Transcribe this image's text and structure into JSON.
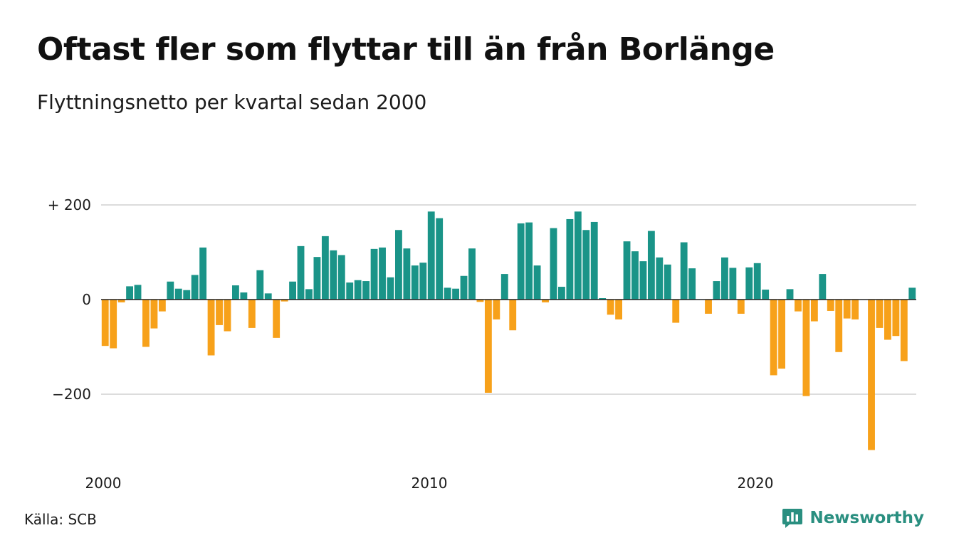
{
  "title": "Oftast fler som flyttar till än från Borlänge",
  "subtitle": "Flyttningsnetto per kvartal sedan 2000",
  "source": "Källa: SCB",
  "brand": {
    "name": "Newsworthy",
    "icon": "bar-chart-logo-icon"
  },
  "colors": {
    "positive": "#1a9488",
    "negative": "#f7a11a",
    "grid": "#dcdcdc",
    "zero_line": "#222222",
    "brand": "#2a8f80"
  },
  "chart_data": {
    "type": "bar",
    "title": "Oftast fler som flyttar till än från Borlänge",
    "subtitle": "Flyttningsnetto per kvartal sedan 2000",
    "xlabel": "",
    "ylabel": "",
    "x_start": "2000 Q1",
    "x_ticks": [
      {
        "label": "2000",
        "index": 0
      },
      {
        "label": "2010",
        "index": 40
      },
      {
        "label": "2020",
        "index": 80
      }
    ],
    "y_ticks": [
      {
        "label": "+ 200",
        "value": 200
      },
      {
        "label": "0",
        "value": 0
      },
      {
        "label": "−200",
        "value": -200
      }
    ],
    "ylim": [
      -330,
      210
    ],
    "grid": true,
    "values": [
      -98,
      -103,
      -6,
      28,
      31,
      -100,
      -61,
      -25,
      38,
      23,
      20,
      52,
      110,
      -118,
      -54,
      -67,
      30,
      15,
      -60,
      62,
      13,
      -81,
      -4,
      38,
      113,
      22,
      90,
      134,
      104,
      94,
      36,
      41,
      39,
      107,
      110,
      47,
      147,
      108,
      72,
      78,
      186,
      172,
      25,
      23,
      50,
      108,
      -5,
      -197,
      -42,
      54,
      -65,
      161,
      163,
      72,
      -6,
      151,
      27,
      170,
      186,
      147,
      164,
      3,
      -32,
      -42,
      123,
      102,
      81,
      145,
      89,
      74,
      -49,
      121,
      66,
      0,
      -30,
      39,
      89,
      67,
      -30,
      68,
      77,
      21,
      -160,
      -146,
      22,
      -25,
      -204,
      -46,
      54,
      -24,
      -111,
      -40,
      -42,
      0,
      -318,
      -60,
      -85,
      -77,
      -130,
      25
    ]
  }
}
